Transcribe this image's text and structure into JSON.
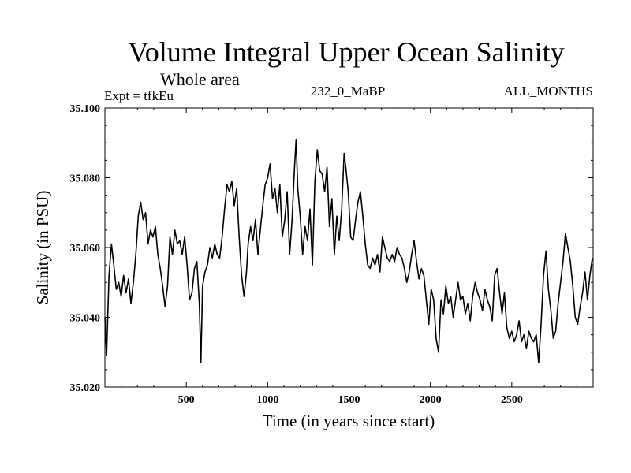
{
  "chart_data": {
    "type": "line",
    "title": "Volume Integral Upper Ocean Salinity",
    "subtitle": "Whole area",
    "experiment_label": "Expt = tfkEu",
    "run_label": "232_0_MaBP",
    "months_label": "ALL_MONTHS",
    "xlabel": "Time (in years since start)",
    "ylabel": "Salinity (in PSU)",
    "xlim": [
      0,
      3000
    ],
    "ylim": [
      35.02,
      35.1
    ],
    "x_ticks": [
      500,
      1000,
      1500,
      2000,
      2500
    ],
    "x_tick_labels": [
      "500",
      "1000",
      "1500",
      "2000",
      "2500"
    ],
    "y_ticks": [
      35.02,
      35.04,
      35.06,
      35.08,
      35.1
    ],
    "y_tick_labels": [
      "35.020",
      "35.040",
      "35.060",
      "35.080",
      "35.100"
    ],
    "grid": false,
    "line_color": "#000000",
    "series": [
      {
        "x": [
          0,
          10,
          25,
          40,
          55,
          70,
          85,
          100,
          115,
          130,
          145,
          160,
          175,
          190,
          205,
          220,
          235,
          250,
          265,
          280,
          295,
          310,
          325,
          340,
          355,
          370,
          385,
          400,
          415,
          430,
          445,
          460,
          475,
          490,
          505,
          520,
          535,
          550,
          565,
          580,
          590,
          600,
          615,
          630,
          645,
          660,
          675,
          690,
          705,
          720,
          735,
          750,
          765,
          780,
          795,
          810,
          825,
          840,
          855,
          870,
          880,
          895,
          910,
          925,
          940,
          955,
          970,
          985,
          1000,
          1015,
          1030,
          1045,
          1060,
          1075,
          1090,
          1105,
          1120,
          1135,
          1150,
          1165,
          1175,
          1185,
          1200,
          1215,
          1230,
          1245,
          1260,
          1275,
          1290,
          1305,
          1320,
          1335,
          1350,
          1365,
          1380,
          1395,
          1410,
          1425,
          1440,
          1455,
          1470,
          1480,
          1495,
          1510,
          1525,
          1540,
          1555,
          1570,
          1585,
          1600,
          1615,
          1630,
          1645,
          1660,
          1675,
          1690,
          1705,
          1720,
          1735,
          1750,
          1765,
          1780,
          1795,
          1810,
          1825,
          1840,
          1855,
          1870,
          1885,
          1900,
          1915,
          1930,
          1945,
          1960,
          1975,
          1990,
          2005,
          2020,
          2035,
          2050,
          2065,
          2080,
          2095,
          2110,
          2125,
          2140,
          2155,
          2170,
          2185,
          2200,
          2215,
          2230,
          2245,
          2260,
          2275,
          2290,
          2305,
          2320,
          2335,
          2350,
          2365,
          2380,
          2395,
          2410,
          2425,
          2440,
          2455,
          2470,
          2485,
          2500,
          2515,
          2530,
          2545,
          2560,
          2575,
          2590,
          2605,
          2620,
          2635,
          2650,
          2665,
          2680,
          2695,
          2710,
          2725,
          2740,
          2755,
          2770,
          2785,
          2800,
          2815,
          2830,
          2845,
          2860,
          2875,
          2890,
          2905,
          2920,
          2935,
          2950,
          2965,
          2980,
          2995
        ],
        "y": [
          35.04,
          35.029,
          35.052,
          35.061,
          35.055,
          35.048,
          35.05,
          35.046,
          35.052,
          35.047,
          35.051,
          35.044,
          35.05,
          35.058,
          35.069,
          35.073,
          35.068,
          35.07,
          35.061,
          35.065,
          35.063,
          35.066,
          35.058,
          35.054,
          35.049,
          35.043,
          35.049,
          35.063,
          35.058,
          35.065,
          35.061,
          35.062,
          35.058,
          35.063,
          35.055,
          35.045,
          35.047,
          35.054,
          35.056,
          35.044,
          35.027,
          35.049,
          35.053,
          35.055,
          35.06,
          35.057,
          35.061,
          35.058,
          35.057,
          35.063,
          35.071,
          35.078,
          35.076,
          35.079,
          35.072,
          35.077,
          35.063,
          35.052,
          35.046,
          35.053,
          35.061,
          35.066,
          35.062,
          35.068,
          35.058,
          35.065,
          35.072,
          35.078,
          35.08,
          35.084,
          35.074,
          35.077,
          35.07,
          35.078,
          35.063,
          35.068,
          35.076,
          35.058,
          35.068,
          35.083,
          35.091,
          35.077,
          35.069,
          35.058,
          35.066,
          35.062,
          35.071,
          35.055,
          35.079,
          35.088,
          35.082,
          35.081,
          35.076,
          35.083,
          35.066,
          35.074,
          35.058,
          35.069,
          35.062,
          35.071,
          35.087,
          35.083,
          35.076,
          35.063,
          35.062,
          35.068,
          35.073,
          35.076,
          35.069,
          35.061,
          35.055,
          35.054,
          35.057,
          35.055,
          35.058,
          35.053,
          35.063,
          35.06,
          35.057,
          35.056,
          35.058,
          35.056,
          35.06,
          35.058,
          35.057,
          35.054,
          35.05,
          35.053,
          35.058,
          35.062,
          35.056,
          35.051,
          35.054,
          35.052,
          35.045,
          35.038,
          35.048,
          35.045,
          35.034,
          35.03,
          35.045,
          35.041,
          35.049,
          35.044,
          35.046,
          35.04,
          35.045,
          35.05,
          35.045,
          35.046,
          35.041,
          35.044,
          35.039,
          35.046,
          35.05,
          35.047,
          35.045,
          35.042,
          35.048,
          35.045,
          35.043,
          35.039,
          35.052,
          35.054,
          35.047,
          35.041,
          35.047,
          35.037,
          35.034,
          35.036,
          35.033,
          35.035,
          35.039,
          35.033,
          35.035,
          35.031,
          35.036,
          35.034,
          35.033,
          35.035,
          35.027,
          35.038,
          35.052,
          35.059,
          35.048,
          35.042,
          35.034,
          35.036,
          35.044,
          35.05,
          35.056,
          35.064,
          35.06,
          35.056,
          35.049,
          35.04,
          35.038,
          35.043,
          35.047,
          35.053,
          35.045,
          35.052,
          35.057
        ]
      }
    ]
  }
}
